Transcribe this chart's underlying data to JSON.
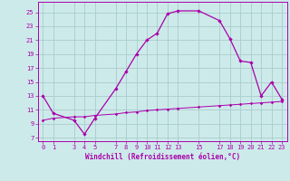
{
  "xlabel": "Windchill (Refroidissement éolien,°C)",
  "background_color": "#cdeaea",
  "line_color": "#aa00aa",
  "grid_color": "#aacccc",
  "x_main": [
    0,
    1,
    3,
    4,
    5,
    7,
    8,
    9,
    10,
    11,
    12,
    13,
    15,
    17,
    18,
    19,
    20,
    21,
    22,
    23
  ],
  "y_main": [
    13,
    10.5,
    9.5,
    7.5,
    9.8,
    14.0,
    16.5,
    19.0,
    21.0,
    22.0,
    24.8,
    25.2,
    25.2,
    23.8,
    21.2,
    18.0,
    17.8,
    13.0,
    15.0,
    12.5
  ],
  "x_flat": [
    0,
    1,
    3,
    4,
    5,
    7,
    8,
    9,
    10,
    11,
    12,
    13,
    15,
    17,
    18,
    19,
    20,
    21,
    22,
    23
  ],
  "y_flat": [
    9.5,
    9.8,
    10.0,
    10.0,
    10.2,
    10.4,
    10.6,
    10.7,
    10.9,
    11.0,
    11.1,
    11.2,
    11.4,
    11.6,
    11.7,
    11.8,
    11.9,
    12.0,
    12.1,
    12.2
  ],
  "xticks": [
    0,
    1,
    3,
    4,
    5,
    7,
    8,
    9,
    10,
    11,
    12,
    13,
    15,
    17,
    18,
    19,
    20,
    21,
    22,
    23
  ],
  "yticks": [
    7,
    9,
    11,
    13,
    15,
    17,
    19,
    21,
    23,
    25
  ],
  "xlim": [
    -0.5,
    23.5
  ],
  "ylim": [
    6.5,
    26.5
  ]
}
